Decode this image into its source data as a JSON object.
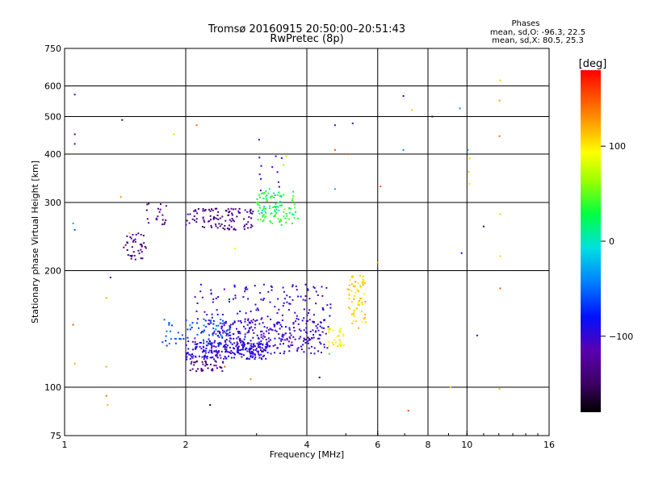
{
  "chart_data": {
    "type": "scatter",
    "title": "Tromsø 20160915 20:50:00–20:51:43",
    "subtitle": "RwPretec (8p)",
    "xlabel": "Frequency [MHz]",
    "ylabel": "Stationary phase Virtual Height [km]",
    "xscale": "log",
    "yscale": "log",
    "xlim": [
      1,
      16
    ],
    "ylim": [
      75,
      750
    ],
    "xticks": [
      "1",
      "2",
      "4",
      "6",
      "8",
      "10",
      "16"
    ],
    "yticks": [
      "75",
      "100",
      "200",
      "300",
      "400",
      "500",
      "600",
      "750"
    ],
    "grid": true,
    "phases": {
      "heading": "Phases",
      "line1": "mean, sd,O: -96.3, 22.5",
      "line2": "mean, sd,X: 80.5, 25.3"
    },
    "colorbar": {
      "label": "[deg]",
      "range": [
        -180,
        180
      ],
      "ticks": [
        "100",
        "0",
        "−100"
      ]
    },
    "clusters": [
      {
        "x": [
          2.0,
          3.2
        ],
        "y": [
          118,
          132
        ],
        "phase": [
          -110,
          -85
        ],
        "n": 240
      },
      {
        "x": [
          2.4,
          4.5
        ],
        "y": [
          122,
          150
        ],
        "phase": [
          -115,
          -90
        ],
        "n": 220
      },
      {
        "x": [
          2.1,
          4.6
        ],
        "y": [
          133,
          185
        ],
        "phase": [
          -120,
          -80
        ],
        "n": 180
      },
      {
        "x": [
          1.75,
          2.7
        ],
        "y": [
          128,
          150
        ],
        "phase": [
          -75,
          -45
        ],
        "n": 70
      },
      {
        "x": [
          2.05,
          2.5
        ],
        "y": [
          110,
          117
        ],
        "phase": [
          -150,
          -120
        ],
        "n": 40
      },
      {
        "x": [
          4.5,
          4.95
        ],
        "y": [
          127,
          142
        ],
        "phase": [
          80,
          110
        ],
        "n": 30
      },
      {
        "x": [
          5.05,
          5.6
        ],
        "y": [
          142,
          195
        ],
        "phase": [
          95,
          125
        ],
        "n": 70
      },
      {
        "x": [
          2.0,
          2.95
        ],
        "y": [
          255,
          290
        ],
        "phase": [
          -150,
          -115
        ],
        "n": 110
      },
      {
        "x": [
          1.4,
          1.6
        ],
        "y": [
          212,
          250
        ],
        "phase": [
          -150,
          -120
        ],
        "n": 40
      },
      {
        "x": [
          1.6,
          1.8
        ],
        "y": [
          262,
          300
        ],
        "phase": [
          -145,
          -115
        ],
        "n": 20
      },
      {
        "x": [
          3.0,
          3.8
        ],
        "y": [
          262,
          320
        ],
        "phase": [
          20,
          45
        ],
        "n": 90
      },
      {
        "x": [
          3.05,
          3.45
        ],
        "y": [
          280,
          330
        ],
        "phase": [
          -30,
          15
        ],
        "n": 20
      },
      {
        "x": [
          3.0,
          3.5
        ],
        "y": [
          300,
          440
        ],
        "phase": [
          -120,
          -90
        ],
        "n": 12
      }
    ],
    "points": [
      {
        "x": 1.06,
        "y": 570,
        "phase": -115
      },
      {
        "x": 1.06,
        "y": 450,
        "phase": -130
      },
      {
        "x": 1.06,
        "y": 425,
        "phase": -120
      },
      {
        "x": 1.05,
        "y": 265,
        "phase": -30
      },
      {
        "x": 1.06,
        "y": 255,
        "phase": -60
      },
      {
        "x": 1.05,
        "y": 145,
        "phase": 150
      },
      {
        "x": 1.06,
        "y": 115,
        "phase": 120
      },
      {
        "x": 1.27,
        "y": 113,
        "phase": 120
      },
      {
        "x": 1.27,
        "y": 95,
        "phase": 140
      },
      {
        "x": 1.28,
        "y": 90,
        "phase": 120
      },
      {
        "x": 1.27,
        "y": 170,
        "phase": 120
      },
      {
        "x": 1.3,
        "y": 192,
        "phase": -120
      },
      {
        "x": 1.39,
        "y": 490,
        "phase": -150
      },
      {
        "x": 1.38,
        "y": 310,
        "phase": 130
      },
      {
        "x": 1.45,
        "y": 250,
        "phase": 110
      },
      {
        "x": 1.87,
        "y": 450,
        "phase": 110
      },
      {
        "x": 2.13,
        "y": 475,
        "phase": 140
      },
      {
        "x": 2.3,
        "y": 90,
        "phase": -170
      },
      {
        "x": 2.5,
        "y": 113,
        "phase": 150
      },
      {
        "x": 2.65,
        "y": 228,
        "phase": 100
      },
      {
        "x": 2.9,
        "y": 105,
        "phase": 130
      },
      {
        "x": 3.5,
        "y": 375,
        "phase": 60
      },
      {
        "x": 3.55,
        "y": 395,
        "phase": 70
      },
      {
        "x": 4.3,
        "y": 106,
        "phase": -150
      },
      {
        "x": 4.55,
        "y": 122,
        "phase": 10
      },
      {
        "x": 4.7,
        "y": 475,
        "phase": -110
      },
      {
        "x": 4.7,
        "y": 410,
        "phase": 150
      },
      {
        "x": 4.7,
        "y": 325,
        "phase": -30
      },
      {
        "x": 5.05,
        "y": 400,
        "phase": 150
      },
      {
        "x": 5.2,
        "y": 480,
        "phase": -110
      },
      {
        "x": 6.1,
        "y": 330,
        "phase": 150
      },
      {
        "x": 6.0,
        "y": 210,
        "phase": 130
      },
      {
        "x": 6.95,
        "y": 565,
        "phase": -80
      },
      {
        "x": 6.95,
        "y": 410,
        "phase": -40
      },
      {
        "x": 7.15,
        "y": 87,
        "phase": 160
      },
      {
        "x": 7.3,
        "y": 520,
        "phase": 110
      },
      {
        "x": 8.2,
        "y": 500,
        "phase": -150
      },
      {
        "x": 9.1,
        "y": 100,
        "phase": 110
      },
      {
        "x": 9.6,
        "y": 525,
        "phase": -40
      },
      {
        "x": 9.7,
        "y": 222,
        "phase": -90
      },
      {
        "x": 10.05,
        "y": 410,
        "phase": -30
      },
      {
        "x": 10.15,
        "y": 390,
        "phase": 110
      },
      {
        "x": 10.1,
        "y": 360,
        "phase": 110
      },
      {
        "x": 10.15,
        "y": 335,
        "phase": 90
      },
      {
        "x": 10.6,
        "y": 136,
        "phase": -110
      },
      {
        "x": 11.0,
        "y": 260,
        "phase": -150
      },
      {
        "x": 12.1,
        "y": 620,
        "phase": 110
      },
      {
        "x": 12.05,
        "y": 550,
        "phase": 130
      },
      {
        "x": 12.05,
        "y": 445,
        "phase": 140
      },
      {
        "x": 12.1,
        "y": 280,
        "phase": 110
      },
      {
        "x": 12.1,
        "y": 218,
        "phase": 110
      },
      {
        "x": 12.1,
        "y": 180,
        "phase": 150
      },
      {
        "x": 12.05,
        "y": 99,
        "phase": 120
      }
    ]
  }
}
